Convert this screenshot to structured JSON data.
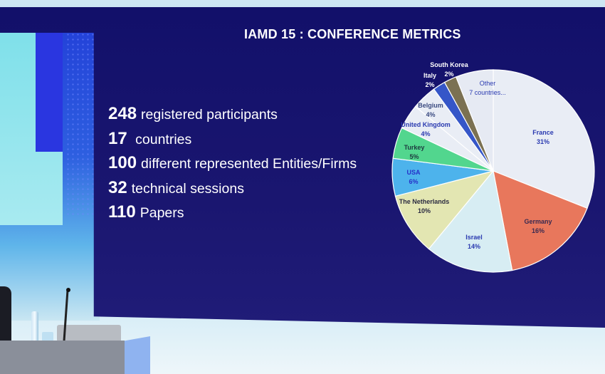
{
  "slide": {
    "title": "IAMD 15 : CONFERENCE METRICS",
    "metrics": [
      {
        "number": "248",
        "text": "registered participants"
      },
      {
        "number": "17",
        "text": "countries"
      },
      {
        "number": "100",
        "text": "different represented Entities/Firms"
      },
      {
        "number": "32",
        "text": "technical sessions"
      },
      {
        "number": "110",
        "text": "Papers"
      }
    ]
  },
  "chart_data": {
    "type": "pie",
    "title": "",
    "start": "top, clockwise",
    "slices": [
      {
        "label": "France",
        "pct_label": "31%",
        "value": 31,
        "color": "#e9edf5",
        "text_color": "#2a3ab0"
      },
      {
        "label": "Germany",
        "pct_label": "16%",
        "value": 16,
        "color": "#e8775c",
        "text_color": "#3a2a50"
      },
      {
        "label": "Israel",
        "pct_label": "14%",
        "value": 14,
        "color": "#d7edf3",
        "text_color": "#2a3ab0"
      },
      {
        "label": "The Netherlands",
        "pct_label": "10%",
        "value": 10,
        "color": "#e3e6b2",
        "text_color": "#2a2a40"
      },
      {
        "label": "USA",
        "pct_label": "6%",
        "value": 6,
        "color": "#4db3ec",
        "text_color": "#2630c8"
      },
      {
        "label": "Turkey",
        "pct_label": "5%",
        "value": 5,
        "color": "#52d68e",
        "text_color": "#1e3a40"
      },
      {
        "label": "United Kingdom",
        "pct_label": "4%",
        "value": 4,
        "color": "#e9edf5",
        "text_color": "#2a3ab0"
      },
      {
        "label": "Belgium",
        "pct_label": "4%",
        "value": 4,
        "color": "#e9edf5",
        "text_color": "#3a4a80"
      },
      {
        "label": "Italy",
        "pct_label": "2%",
        "value": 2,
        "color": "#3556c8",
        "text_color": "#ffffff"
      },
      {
        "label": "South Korea",
        "pct_label": "2%",
        "value": 2,
        "color": "#7b7152",
        "text_color": "#ffffff"
      },
      {
        "label": "Other",
        "pct_label": "7 countries...",
        "value": 6,
        "color": "#e6eaf3",
        "text_color": "#2a3ab0"
      }
    ]
  }
}
